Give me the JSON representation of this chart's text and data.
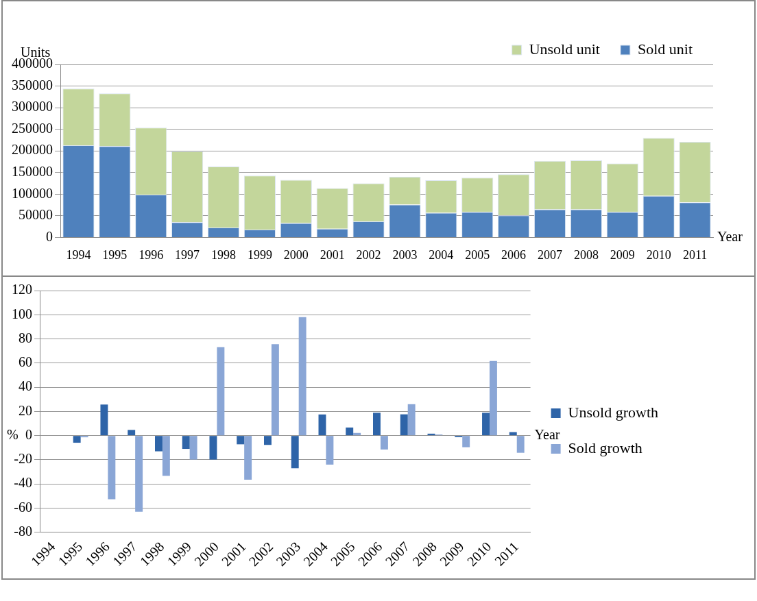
{
  "chart_data": [
    {
      "type": "bar",
      "stacked": true,
      "ylabel": "Units",
      "xlabel": "Year",
      "categories": [
        "1994",
        "1995",
        "1996",
        "1997",
        "1998",
        "1999",
        "2000",
        "2001",
        "2002",
        "2003",
        "2004",
        "2005",
        "2006",
        "2007",
        "2008",
        "2009",
        "2010",
        "2011"
      ],
      "series": [
        {
          "name": "Sold unit",
          "color": "#4f81bd",
          "values": [
            213000,
            211000,
            99000,
            35000,
            23000,
            18000,
            33000,
            20000,
            37000,
            76000,
            57000,
            59000,
            51000,
            65000,
            65000,
            59000,
            96000,
            81000
          ]
        },
        {
          "name": "Unsold unit",
          "color": "#c3d69b",
          "values": [
            131000,
            122000,
            155000,
            164000,
            141000,
            125000,
            100000,
            94000,
            88000,
            64000,
            75000,
            79000,
            95000,
            112000,
            113000,
            112000,
            134000,
            140000
          ]
        }
      ],
      "ylim": [
        0,
        400000
      ],
      "yticks": [
        0,
        50000,
        100000,
        150000,
        200000,
        250000,
        300000,
        350000,
        400000
      ],
      "grid": "y",
      "legend": "top right"
    },
    {
      "type": "bar",
      "ylabel": "%",
      "xlabel": "Year",
      "categories": [
        "1994",
        "1995",
        "1996",
        "1997",
        "1998",
        "1999",
        "2000",
        "2001",
        "2002",
        "2003",
        "2004",
        "2005",
        "2006",
        "2007",
        "2008",
        "2009",
        "2010",
        "2011"
      ],
      "series": [
        {
          "name": "Unsold growth",
          "color": "#2e64a8",
          "values": [
            null,
            -5.9,
            25.7,
            4.7,
            -13,
            -11,
            -19.8,
            -7.2,
            -7.7,
            -27,
            17.5,
            6.7,
            18.9,
            17.6,
            1.6,
            -1.3,
            18.9,
            2.9
          ]
        },
        {
          "name": "Sold growth",
          "color": "#8aa6d6",
          "values": [
            null,
            -1.4,
            -52.7,
            -63,
            -33.3,
            -19.8,
            73.2,
            -36.5,
            75.7,
            98,
            -24,
            2.2,
            -11.5,
            26,
            0.9,
            -9.6,
            61.8,
            -14.2
          ]
        }
      ],
      "ylim": [
        -80,
        120
      ],
      "yticks": [
        -80,
        -60,
        -40,
        -20,
        0,
        20,
        40,
        60,
        80,
        100,
        120
      ],
      "grid": "y",
      "legend": "right"
    }
  ]
}
